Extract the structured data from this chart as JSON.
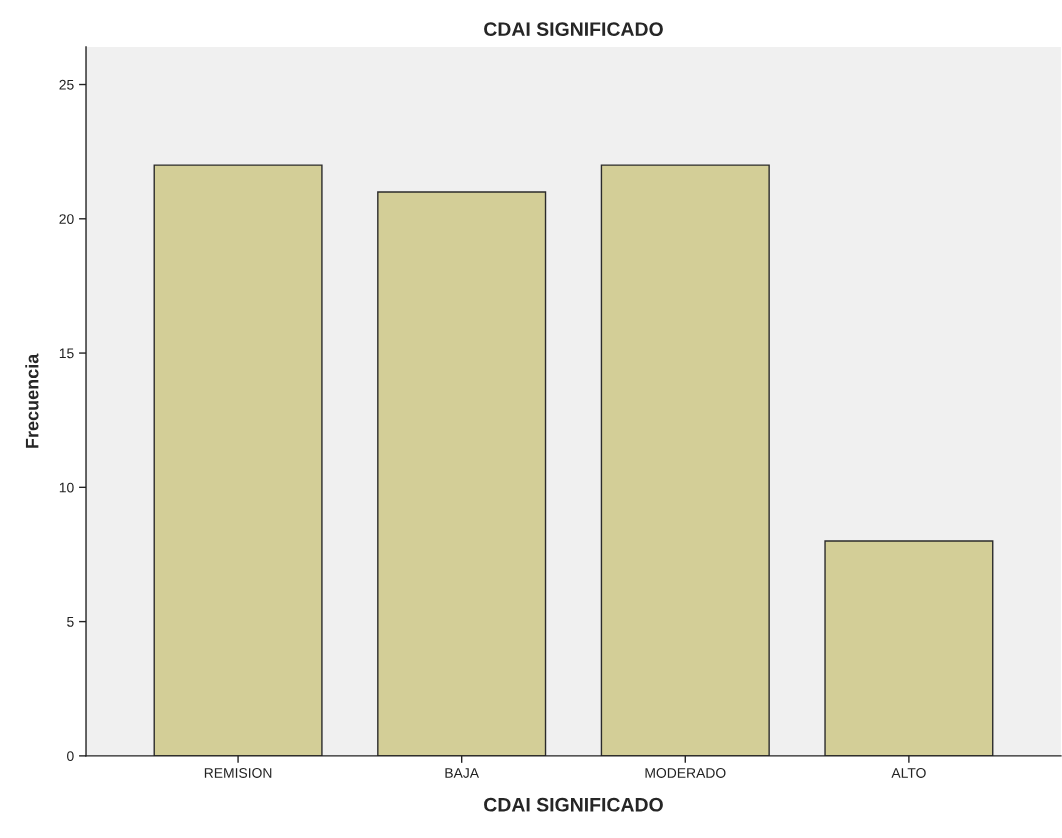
{
  "chart_data": {
    "type": "bar",
    "title": "CDAI SIGNIFICADO",
    "xlabel": "CDAI SIGNIFICADO",
    "ylabel": "Frecuencia",
    "categories": [
      "REMISION",
      "BAJA",
      "MODERADO",
      "ALTO"
    ],
    "values": [
      22,
      21,
      22,
      8
    ],
    "color": "#d3ce97",
    "ylim": [
      0,
      26.4
    ],
    "yticks": [
      0,
      5,
      10,
      15,
      20,
      25
    ],
    "grid": false
  }
}
